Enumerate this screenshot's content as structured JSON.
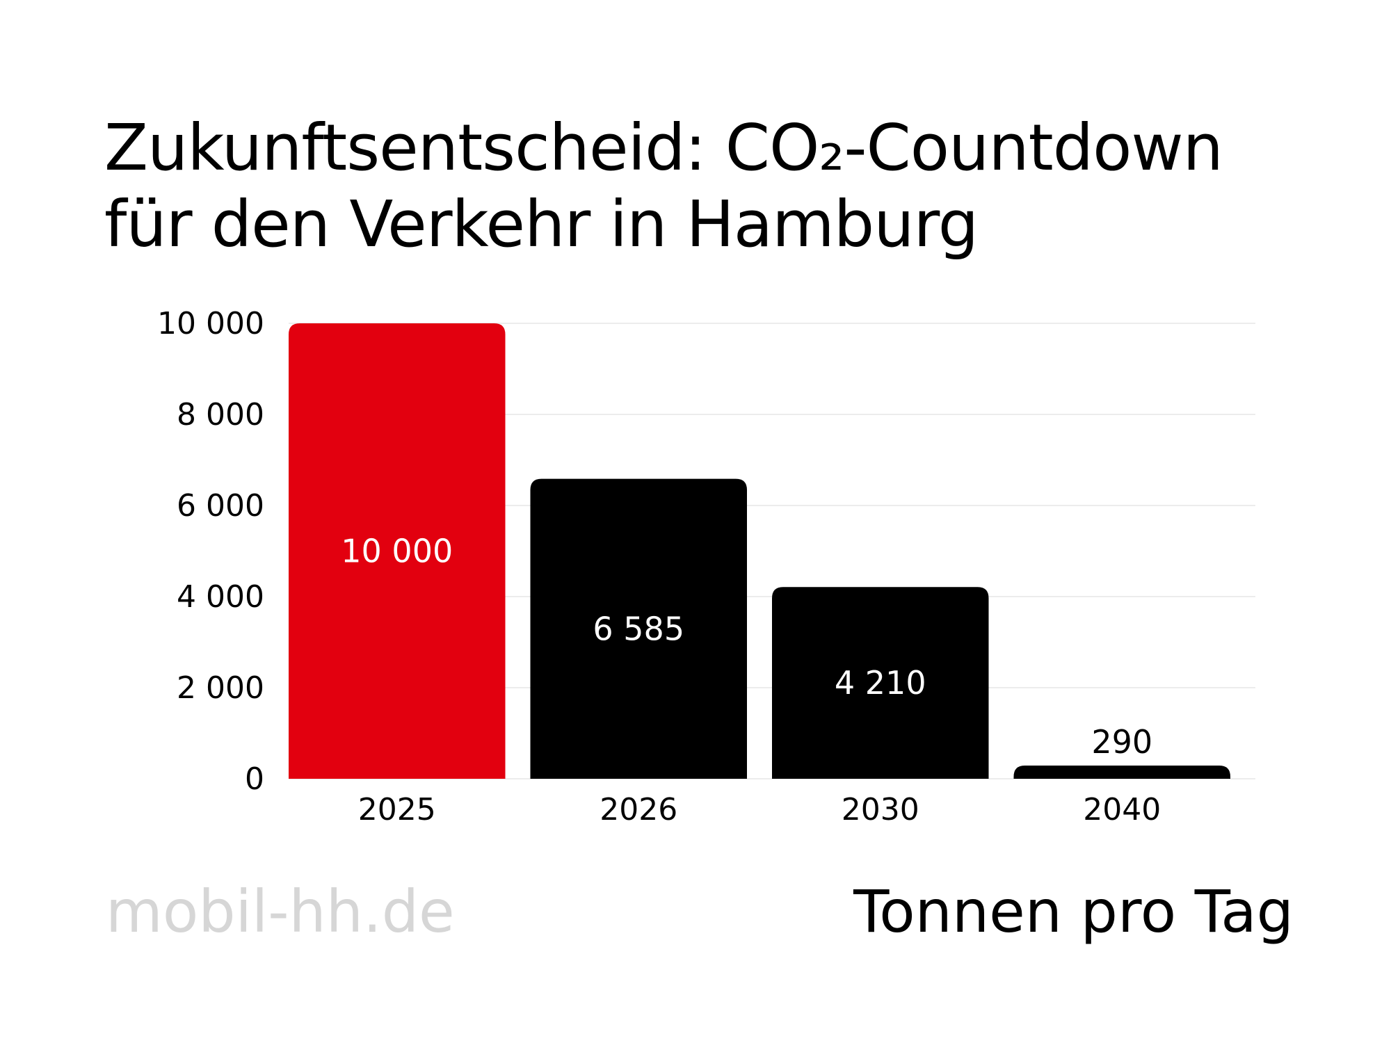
{
  "title_line1": "Zukunftsentscheid: CO₂-Countdown",
  "title_line2": "für den Verkehr in Hamburg",
  "source": "mobil-hh.de",
  "unit": "Tonnen pro Tag",
  "colors": {
    "highlight": "#e2000f",
    "bar": "#000000",
    "grid": "#ececec"
  },
  "chart_data": {
    "type": "bar",
    "categories": [
      "2025",
      "2026",
      "2030",
      "2040"
    ],
    "values": [
      10000,
      6585,
      4210,
      290
    ],
    "value_labels": [
      "10 000",
      "6 585",
      "4 210",
      "290"
    ],
    "ylim": [
      0,
      10000
    ],
    "yticks": [
      0,
      2000,
      4000,
      6000,
      8000,
      10000
    ],
    "ytick_labels": [
      "0",
      "2 000",
      "4 000",
      "6 000",
      "8 000",
      "10 000"
    ],
    "highlight_index": 0,
    "grid": true
  }
}
